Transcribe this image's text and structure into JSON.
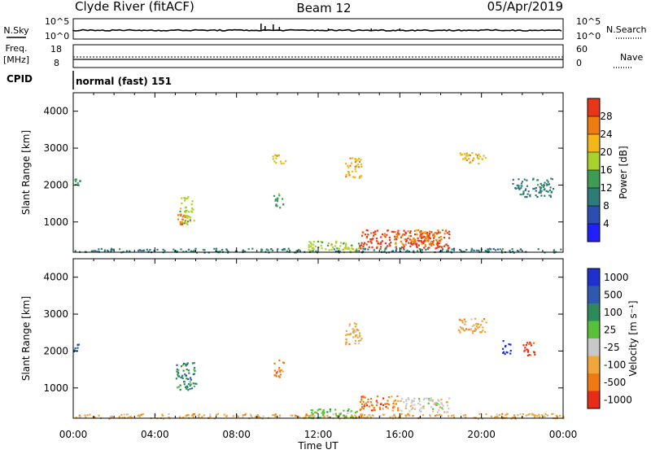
{
  "header": {
    "station": "Clyde River (fitACF)",
    "beam": "Beam 12",
    "date": "05/Apr/2019"
  },
  "status_panels": {
    "nsky_label": "N.Sky",
    "nsearch_label": "N.Search",
    "noise_ticks_left": [
      "10^5",
      "10^0"
    ],
    "noise_ticks_right": [
      "10^5",
      "10^0"
    ],
    "freq_label": "Freq.",
    "freq_unit": "[MHz]",
    "freq_ticks": [
      "18",
      "8"
    ],
    "nave_label": "Nave",
    "nave_ticks": [
      "60",
      "0"
    ],
    "cpid_label": "CPID",
    "cpid_value": "normal (fast) 151"
  },
  "time_axis": {
    "label": "Time UT",
    "ticks": [
      "00:00",
      "04:00",
      "08:00",
      "12:00",
      "16:00",
      "20:00",
      "00:00"
    ]
  },
  "chart_data": [
    {
      "type": "heatmap",
      "panel": "power",
      "ylabel": "Slant Range [km]",
      "x_range_hours": [
        0,
        24
      ],
      "ylim": [
        180,
        4500
      ],
      "yticks": [
        1000,
        2000,
        3000,
        4000
      ],
      "colorbar": {
        "label": "Power [dB]",
        "ticks": [
          "4",
          "8",
          "12",
          "16",
          "20",
          "24",
          "28"
        ],
        "bins": [
          0,
          4,
          8,
          12,
          16,
          20,
          24,
          28,
          32
        ],
        "colors": [
          "#1f1fff",
          "#2a4fb0",
          "#2e7c7a",
          "#3f9a55",
          "#a9d22e",
          "#f3b718",
          "#ef7c10",
          "#e8361b"
        ]
      },
      "regions": [
        {
          "t": [
            14.0,
            18.4
          ],
          "r": [
            300,
            800
          ],
          "level": 7
        },
        {
          "t": [
            15.7,
            18.0
          ],
          "r": [
            400,
            800
          ],
          "level": 6
        },
        {
          "t": [
            11.5,
            14.0
          ],
          "r": [
            190,
            500
          ],
          "level": 4
        },
        {
          "t": [
            5.2,
            5.9
          ],
          "r": [
            950,
            1700
          ],
          "level": 4
        },
        {
          "t": [
            5.0,
            5.5
          ],
          "r": [
            950,
            1300
          ],
          "level": 6
        },
        {
          "t": [
            0.0,
            24.0
          ],
          "r": [
            190,
            300
          ],
          "level": 2
        },
        {
          "t": [
            9.8,
            10.3
          ],
          "r": [
            1400,
            1800
          ],
          "level": 3
        },
        {
          "t": [
            9.7,
            10.4
          ],
          "r": [
            2600,
            2850
          ],
          "level": 5
        },
        {
          "t": [
            13.3,
            14.1
          ],
          "r": [
            2200,
            2800
          ],
          "level": 5
        },
        {
          "t": [
            18.8,
            20.2
          ],
          "r": [
            2600,
            2900
          ],
          "level": 5
        },
        {
          "t": [
            21.5,
            23.5
          ],
          "r": [
            1700,
            2200
          ],
          "level": 2
        },
        {
          "t": [
            0.0,
            0.3
          ],
          "r": [
            2000,
            2200
          ],
          "level": 3
        }
      ]
    },
    {
      "type": "heatmap",
      "panel": "velocity",
      "ylabel": "Slant Range [km]",
      "x_range_hours": [
        0,
        24
      ],
      "ylim": [
        180,
        4500
      ],
      "yticks": [
        1000,
        2000,
        3000,
        4000
      ],
      "colorbar": {
        "label": "Velocity [m s^-1]",
        "ticks": [
          "1000",
          "500",
          "100",
          "25",
          "-25",
          "-100",
          "-500",
          "-1000"
        ],
        "colors": [
          "#2030d0",
          "#2f58b0",
          "#2e8a5a",
          "#58c03a",
          "#c8c8c8",
          "#f0a63a",
          "#ef7a12",
          "#e82c1a"
        ]
      },
      "regions": [
        {
          "t": [
            14.0,
            16.0
          ],
          "r": [
            400,
            800
          ],
          "level": 6
        },
        {
          "t": [
            16.0,
            18.4
          ],
          "r": [
            350,
            750
          ],
          "level": 4
        },
        {
          "t": [
            5.0,
            6.0
          ],
          "r": [
            950,
            1700
          ],
          "level": 2
        },
        {
          "t": [
            0.0,
            24.0
          ],
          "r": [
            190,
            320
          ],
          "level": 5
        },
        {
          "t": [
            11.5,
            14.0
          ],
          "r": [
            190,
            450
          ],
          "level": 3
        },
        {
          "t": [
            9.8,
            10.3
          ],
          "r": [
            1300,
            1800
          ],
          "level": 6
        },
        {
          "t": [
            13.3,
            14.1
          ],
          "r": [
            2200,
            2800
          ],
          "level": 5
        },
        {
          "t": [
            18.8,
            20.2
          ],
          "r": [
            2500,
            2900
          ],
          "level": 5
        },
        {
          "t": [
            22.0,
            22.6
          ],
          "r": [
            1900,
            2300
          ],
          "level": 7
        },
        {
          "t": [
            21.0,
            21.4
          ],
          "r": [
            1900,
            2300
          ],
          "level": 0
        },
        {
          "t": [
            0.0,
            0.3
          ],
          "r": [
            2000,
            2200
          ],
          "level": 1
        }
      ]
    }
  ]
}
